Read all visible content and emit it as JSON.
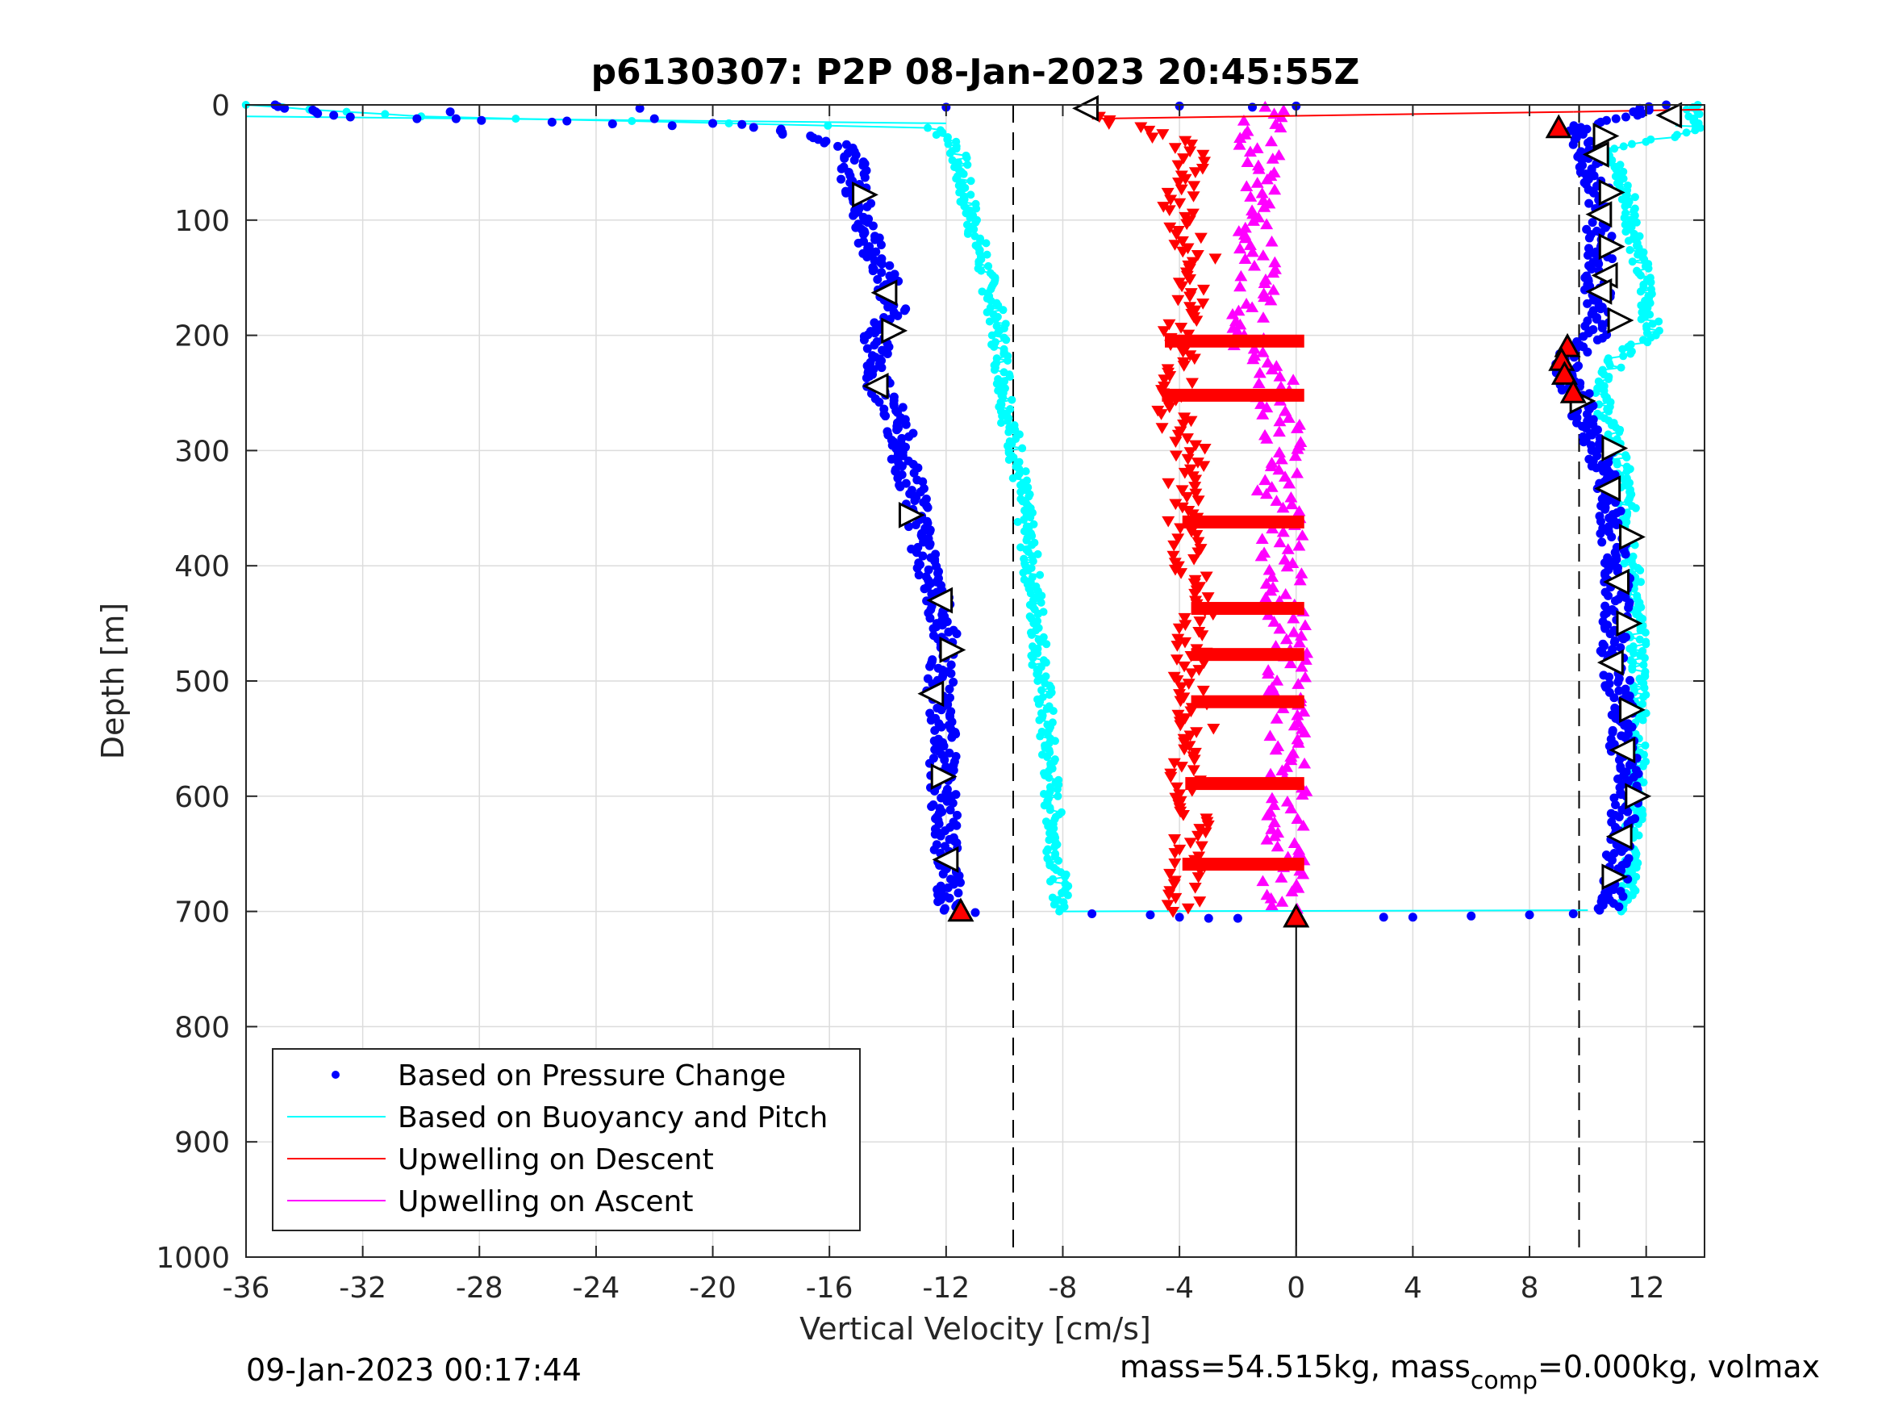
{
  "chart_data": {
    "type": "scatter",
    "title": "p6130307: P2P 08-Jan-2023 20:45:55Z",
    "xlabel": "Vertical Velocity [cm/s]",
    "ylabel": "Depth [m]",
    "xlim": [
      -36,
      14
    ],
    "ylim": [
      0,
      1000
    ],
    "y_reversed": true,
    "x_ticks": [
      "-36",
      "-32",
      "-28",
      "-24",
      "-20",
      "-16",
      "-12",
      "-8",
      "-4",
      "0",
      "4",
      "8",
      "12"
    ],
    "y_ticks": [
      "0",
      "100",
      "200",
      "300",
      "400",
      "500",
      "600",
      "700",
      "800",
      "900",
      "1000"
    ],
    "grid": true,
    "legend": {
      "placement": "bottom-left",
      "entries": [
        {
          "label": "Based on Pressure Change",
          "color": "#0000ff",
          "marker": "dot"
        },
        {
          "label": "Based on Buoyancy and Pitch",
          "color": "#00ffff",
          "marker": "line"
        },
        {
          "label": "Upwelling on Descent",
          "color": "#ff0000",
          "marker": "line"
        },
        {
          "label": "Upwelling on Ascent",
          "color": "#ff00ff",
          "marker": "line"
        }
      ]
    },
    "reference_lines": {
      "dashed_x": [
        -9.7,
        9.7
      ],
      "solid_x_zero_from_depth": 700
    },
    "series": [
      {
        "name": "Based on Pressure Change",
        "color": "#0000ff",
        "descent": {
          "depth": [
            0,
            10,
            20,
            30,
            40,
            60,
            80,
            100,
            120,
            140,
            160,
            180,
            200,
            220,
            240,
            260,
            280,
            300,
            320,
            340,
            360,
            380,
            400,
            420,
            440,
            460,
            480,
            500,
            520,
            540,
            560,
            580,
            600,
            620,
            640,
            660,
            680,
            700
          ],
          "velocity": [
            -35,
            -33,
            -18,
            -16.5,
            -15,
            -15.2,
            -15,
            -14.8,
            -14.7,
            -14.2,
            -14,
            -13.8,
            -14.5,
            -14.3,
            -14.4,
            -13.9,
            -13.6,
            -13.5,
            -13.3,
            -13.1,
            -13,
            -12.8,
            -12.6,
            -12.4,
            -12.2,
            -12,
            -12.1,
            -12.2,
            -12.3,
            -12.1,
            -12,
            -12.2,
            -12.1,
            -12,
            -12,
            -12,
            -11.9,
            -11.8
          ]
        },
        "ascent": {
          "depth": [
            0,
            10,
            20,
            40,
            60,
            80,
            100,
            120,
            140,
            160,
            180,
            200,
            220,
            240,
            260,
            280,
            300,
            320,
            340,
            360,
            380,
            400,
            420,
            440,
            460,
            480,
            500,
            520,
            540,
            560,
            580,
            600,
            620,
            640,
            660,
            680,
            700
          ],
          "velocity": [
            12.5,
            11.5,
            9.5,
            10,
            10.2,
            10.4,
            10.3,
            10.5,
            10.4,
            10.3,
            10.5,
            10.2,
            9.3,
            9.4,
            9.8,
            10,
            10.4,
            10.5,
            10.6,
            10.8,
            10.9,
            11,
            11,
            11,
            10.9,
            10.8,
            11,
            11.2,
            11.1,
            11.2,
            11.3,
            11.3,
            11.2,
            11.1,
            11,
            10.9,
            10.7
          ]
        },
        "bottom_turn": {
          "velocity": [
            -11,
            -7,
            -5,
            -4,
            -3,
            -2,
            0,
            3,
            4,
            6,
            8,
            9.5
          ],
          "depth": [
            701,
            702,
            703,
            705,
            706,
            706,
            706,
            705,
            705,
            704,
            703,
            702
          ]
        },
        "surface_scatter": {
          "velocity": [
            -29,
            -28.8,
            -25,
            -22.5,
            -22,
            -20,
            -19,
            -12,
            -7,
            -4,
            -1.5,
            0
          ],
          "depth": [
            6,
            12,
            14,
            3,
            12,
            16,
            17,
            2,
            1,
            1,
            2,
            1
          ]
        }
      },
      {
        "name": "Based on Buoyancy and Pitch",
        "color": "#00ffff",
        "descent": {
          "depth": [
            0,
            10,
            20,
            30,
            40,
            60,
            80,
            100,
            120,
            140,
            160,
            180,
            200,
            220,
            240,
            260,
            280,
            300,
            320,
            340,
            360,
            380,
            400,
            420,
            440,
            460,
            480,
            500,
            520,
            540,
            560,
            580,
            600,
            620,
            640,
            660,
            680,
            700
          ],
          "velocity": [
            -36,
            -30,
            -12.5,
            -11.8,
            -11.6,
            -11.5,
            -11.3,
            -11.1,
            -10.9,
            -10.7,
            -10.5,
            -10.3,
            -10.2,
            -10.1,
            -10,
            -9.9,
            -9.8,
            -9.6,
            -9.5,
            -9.4,
            -9.3,
            -9.2,
            -9.1,
            -9,
            -8.9,
            -8.8,
            -8.8,
            -8.7,
            -8.6,
            -8.6,
            -8.5,
            -8.4,
            -8.4,
            -8.3,
            -8.3,
            -8.2,
            -8.1,
            -8
          ]
        },
        "ascent": {
          "depth": [
            0,
            20,
            40,
            60,
            80,
            100,
            120,
            140,
            160,
            180,
            200,
            220,
            240,
            260,
            280,
            300,
            320,
            340,
            360,
            380,
            400,
            420,
            440,
            460,
            480,
            500,
            520,
            540,
            560,
            580,
            600,
            620,
            640,
            660,
            680,
            700
          ],
          "velocity": [
            13.5,
            14,
            10.8,
            11,
            11.4,
            11.5,
            11.7,
            11.8,
            12,
            12.1,
            12.2,
            11,
            10.6,
            10.5,
            10.8,
            11,
            11.2,
            11.3,
            11.4,
            11.5,
            11.5,
            11.6,
            11.6,
            11.7,
            11.7,
            11.8,
            11.8,
            11.7,
            11.7,
            11.7,
            11.6,
            11.6,
            11.5,
            11.5,
            11.4,
            11.2
          ]
        },
        "bottom_line": {
          "velocity": [
            -8,
            10
          ],
          "depth": [
            700,
            699
          ]
        }
      },
      {
        "name": "Upwelling on Descent",
        "color": "#ff0000",
        "depth": [
          10,
          20,
          30,
          40,
          60,
          80,
          100,
          120,
          140,
          160,
          180,
          200,
          220,
          240,
          260,
          280,
          300,
          320,
          340,
          360,
          380,
          400,
          420,
          440,
          460,
          480,
          500,
          520,
          540,
          560,
          580,
          600,
          620,
          640,
          660,
          680,
          700
        ],
        "velocity": [
          -7,
          -5.5,
          -4.2,
          -3.5,
          -3.8,
          -4,
          -3.9,
          -3.6,
          -3.2,
          -3.6,
          -3.8,
          -4.3,
          -3.8,
          -4,
          -4.4,
          -4,
          -3.6,
          -3.8,
          -3.8,
          -3.9,
          -3.6,
          -3.7,
          -3.6,
          -3.4,
          -3.6,
          -3.5,
          -3.8,
          -3.5,
          -3.4,
          -3.6,
          -3.8,
          -3.6,
          -3.6,
          -3.6,
          -3.7,
          -3.8,
          -3.8
        ],
        "surface_line": {
          "velocity": [
            -7,
            9.5
          ],
          "depth": [
            12,
            6
          ]
        },
        "horizontal_segments": [
          {
            "depth": 205,
            "from": -4.5,
            "to": 0
          },
          {
            "depth": 252,
            "from": -4.6,
            "to": 0
          },
          {
            "depth": 362,
            "from": -3.9,
            "to": 0
          },
          {
            "depth": 437,
            "from": -3.6,
            "to": 0
          },
          {
            "depth": 477,
            "from": -3.6,
            "to": 0
          },
          {
            "depth": 518,
            "from": -3.6,
            "to": 0
          },
          {
            "depth": 589,
            "from": -3.8,
            "to": 0
          },
          {
            "depth": 659,
            "from": -3.9,
            "to": 0
          }
        ]
      },
      {
        "name": "Upwelling on Ascent",
        "color": "#ff00ff",
        "depth": [
          0,
          20,
          40,
          60,
          80,
          100,
          120,
          140,
          160,
          180,
          200,
          220,
          240,
          260,
          280,
          300,
          320,
          340,
          360,
          380,
          400,
          420,
          440,
          460,
          480,
          500,
          520,
          540,
          560,
          580,
          600,
          620,
          640,
          660,
          680,
          700
        ],
        "velocity": [
          -1,
          -1.2,
          -1.3,
          -0.9,
          -1.2,
          -1.1,
          -1.5,
          -1.4,
          -1.3,
          -1.6,
          -1.8,
          -1,
          -0.7,
          -0.7,
          -0.5,
          -0.4,
          -0.5,
          -0.7,
          -0.4,
          -0.5,
          -0.5,
          -0.4,
          -0.3,
          -0.4,
          -0.3,
          -0.3,
          -0.2,
          -0.4,
          -0.2,
          -0.3,
          -0.2,
          -0.4,
          -0.3,
          -0.4,
          -0.5,
          -0.5
        ]
      }
    ],
    "triangle_markers": [
      {
        "velocity": -7.2,
        "depth": 3,
        "dir": "left",
        "fill": "#ffffff"
      },
      {
        "velocity": -14.8,
        "depth": 78,
        "dir": "right",
        "fill": "#ffffff"
      },
      {
        "velocity": -14.1,
        "depth": 163,
        "dir": "left",
        "fill": "#ffffff"
      },
      {
        "velocity": -13.8,
        "depth": 196,
        "dir": "right",
        "fill": "#ffffff"
      },
      {
        "velocity": -14.4,
        "depth": 244,
        "dir": "left",
        "fill": "#ffffff"
      },
      {
        "velocity": -13.2,
        "depth": 356,
        "dir": "right",
        "fill": "#ffffff"
      },
      {
        "velocity": -12.2,
        "depth": 430,
        "dir": "left",
        "fill": "#ffffff"
      },
      {
        "velocity": -11.8,
        "depth": 473,
        "dir": "right",
        "fill": "#ffffff"
      },
      {
        "velocity": -12.5,
        "depth": 511,
        "dir": "left",
        "fill": "#ffffff"
      },
      {
        "velocity": -12.1,
        "depth": 583,
        "dir": "right",
        "fill": "#ffffff"
      },
      {
        "velocity": -12,
        "depth": 655,
        "dir": "left",
        "fill": "#ffffff"
      },
      {
        "velocity": 12.8,
        "depth": 9,
        "dir": "left",
        "fill": "#ffffff"
      },
      {
        "velocity": 10.6,
        "depth": 27,
        "dir": "right",
        "fill": "#ffffff"
      },
      {
        "velocity": 10.3,
        "depth": 43,
        "dir": "left",
        "fill": "#ffffff"
      },
      {
        "velocity": 10.8,
        "depth": 76,
        "dir": "right",
        "fill": "#ffffff"
      },
      {
        "velocity": 10.4,
        "depth": 95,
        "dir": "left",
        "fill": "#ffffff"
      },
      {
        "velocity": 10.8,
        "depth": 123,
        "dir": "right",
        "fill": "#ffffff"
      },
      {
        "velocity": 10.6,
        "depth": 148,
        "dir": "left",
        "fill": "#ffffff"
      },
      {
        "velocity": 10.4,
        "depth": 162,
        "dir": "left",
        "fill": "#ffffff"
      },
      {
        "velocity": 11.1,
        "depth": 187,
        "dir": "right",
        "fill": "#ffffff"
      },
      {
        "velocity": 9.8,
        "depth": 257,
        "dir": "right",
        "fill": "#ffffff"
      },
      {
        "velocity": 10.9,
        "depth": 298,
        "dir": "right",
        "fill": "#ffffff"
      },
      {
        "velocity": 10.7,
        "depth": 333,
        "dir": "left",
        "fill": "#ffffff"
      },
      {
        "velocity": 11.5,
        "depth": 375,
        "dir": "right",
        "fill": "#ffffff"
      },
      {
        "velocity": 11,
        "depth": 414,
        "dir": "left",
        "fill": "#ffffff"
      },
      {
        "velocity": 11.4,
        "depth": 450,
        "dir": "right",
        "fill": "#ffffff"
      },
      {
        "velocity": 10.8,
        "depth": 484,
        "dir": "left",
        "fill": "#ffffff"
      },
      {
        "velocity": 11.5,
        "depth": 525,
        "dir": "right",
        "fill": "#ffffff"
      },
      {
        "velocity": 11.2,
        "depth": 560,
        "dir": "left",
        "fill": "#ffffff"
      },
      {
        "velocity": 11.7,
        "depth": 600,
        "dir": "right",
        "fill": "#ffffff"
      },
      {
        "velocity": 11.1,
        "depth": 635,
        "dir": "left",
        "fill": "#ffffff"
      },
      {
        "velocity": 10.9,
        "depth": 670,
        "dir": "right",
        "fill": "#ffffff"
      },
      {
        "velocity": -11.5,
        "depth": 700,
        "dir": "up",
        "fill": "#ff0000"
      },
      {
        "velocity": 0,
        "depth": 705,
        "dir": "up",
        "fill": "#ff0000"
      },
      {
        "velocity": 9,
        "depth": 20,
        "dir": "up",
        "fill": "#ff0000"
      },
      {
        "velocity": 9.3,
        "depth": 210,
        "dir": "up",
        "fill": "#ff0000"
      },
      {
        "velocity": 9.1,
        "depth": 222,
        "dir": "up",
        "fill": "#ff0000"
      },
      {
        "velocity": 9.2,
        "depth": 234,
        "dir": "up",
        "fill": "#ff0000"
      },
      {
        "velocity": 9.5,
        "depth": 250,
        "dir": "up",
        "fill": "#ff0000"
      }
    ]
  },
  "footer": {
    "timestamp": "09-Jan-2023 00:17:44",
    "mass_prefix": "mass=54.515kg, mass",
    "mass_sub": "comp",
    "mass_suffix": "=0.000kg, volmax"
  }
}
